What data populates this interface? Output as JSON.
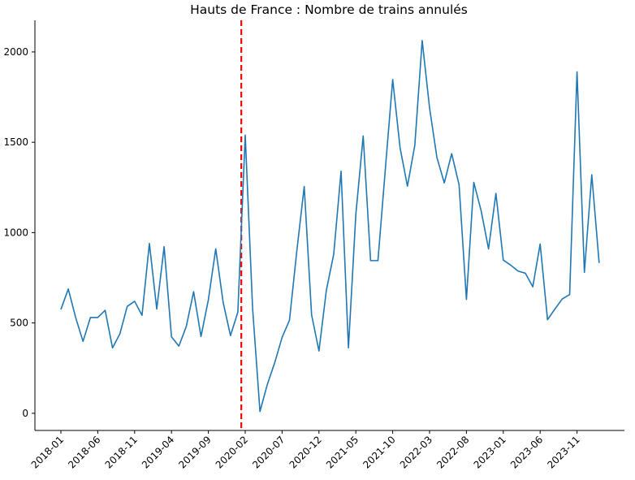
{
  "chart_data": {
    "type": "line",
    "title": "Hauts de France : Nombre de trains annulés",
    "xlabel": "",
    "ylabel": "",
    "x_unit": "month",
    "x_start": "2018-01",
    "ylim": [
      -95,
      2175
    ],
    "yticks": [
      0,
      500,
      1000,
      1500,
      2000
    ],
    "xticks": [
      "2018-01",
      "2018-06",
      "2018-11",
      "2019-04",
      "2019-09",
      "2020-02",
      "2020-07",
      "2020-12",
      "2021-05",
      "2021-10",
      "2022-03",
      "2022-08",
      "2023-01",
      "2023-06",
      "2023-11"
    ],
    "grid": false,
    "legend": "none",
    "series_color": "#1f77b4",
    "vline": {
      "x": "2020-01-15",
      "color": "#ff0000",
      "style": "dashed"
    },
    "series": [
      {
        "x": [
          "2018-01",
          "2018-02",
          "2018-03",
          "2018-04",
          "2018-05",
          "2018-06",
          "2018-07",
          "2018-08",
          "2018-09",
          "2018-10",
          "2018-11",
          "2018-12",
          "2019-01",
          "2019-02",
          "2019-03",
          "2019-04",
          "2019-05",
          "2019-06",
          "2019-07",
          "2019-08",
          "2019-09",
          "2019-10",
          "2019-11",
          "2019-12",
          "2020-01",
          "2020-02",
          "2020-03",
          "2020-04",
          "2020-05",
          "2020-06",
          "2020-07",
          "2020-08",
          "2020-09",
          "2020-10",
          "2020-11",
          "2020-12",
          "2021-01",
          "2021-02",
          "2021-03",
          "2021-04",
          "2021-05",
          "2021-06",
          "2021-07",
          "2021-08",
          "2021-09",
          "2021-10",
          "2021-11",
          "2021-12",
          "2022-01",
          "2022-02",
          "2022-03",
          "2022-04",
          "2022-05",
          "2022-06",
          "2022-07",
          "2022-08",
          "2022-09",
          "2022-10",
          "2022-11",
          "2022-12",
          "2023-01",
          "2023-02",
          "2023-03",
          "2023-04",
          "2023-05",
          "2023-06",
          "2023-07",
          "2023-08",
          "2023-09",
          "2023-10",
          "2023-11",
          "2023-12",
          "2024-01",
          "2024-02"
        ],
        "values": [
          575,
          688,
          530,
          398,
          530,
          530,
          570,
          362,
          440,
          592,
          620,
          542,
          940,
          577,
          922,
          423,
          372,
          480,
          673,
          425,
          628,
          910,
          615,
          430,
          560,
          1540,
          580,
          10,
          160,
          280,
          420,
          515,
          900,
          1255,
          545,
          345,
          680,
          880,
          1340,
          362,
          1100,
          1535,
          845,
          845,
          1350,
          1847,
          1470,
          1257,
          1483,
          2063,
          1690,
          1415,
          1275,
          1437,
          1265,
          630,
          1278,
          1120,
          910,
          1217,
          848,
          820,
          787,
          775,
          700,
          937,
          518,
          577,
          633,
          657,
          1890,
          780,
          1320,
          832
        ]
      }
    ]
  }
}
